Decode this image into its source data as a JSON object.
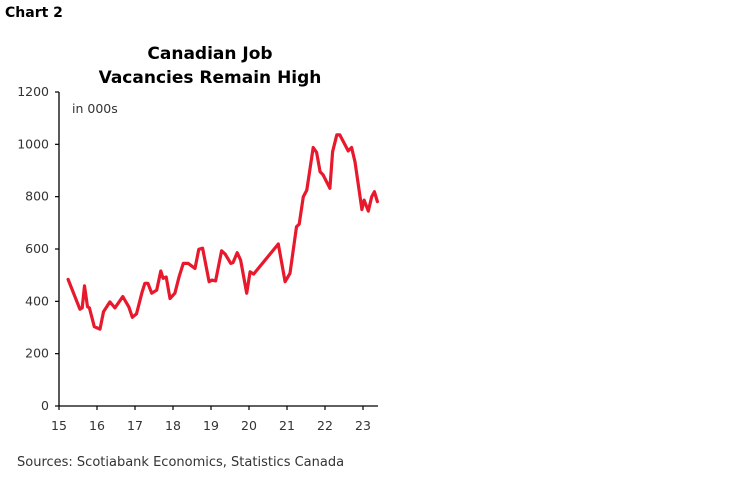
{
  "chart_label": "Chart 2",
  "chart_data": {
    "type": "line",
    "title": "Canadian Job Vacancies Remain High",
    "title_lines": [
      "Canadian Job",
      "Vacancies Remain High"
    ],
    "unit_label": "in 000s",
    "xlabel": "",
    "ylabel": "",
    "ylim": [
      0,
      1200
    ],
    "xlim": [
      15,
      23.4
    ],
    "yticks": [
      0,
      200,
      400,
      600,
      800,
      1000,
      1200
    ],
    "xticks": [
      "15",
      "16",
      "17",
      "18",
      "19",
      "20",
      "21",
      "22",
      "23"
    ],
    "grid": false,
    "legend": "none",
    "color": "#e8192c",
    "series": [
      {
        "x": [
          15.24,
          15.55,
          15.61,
          15.67,
          15.75,
          15.8,
          15.93,
          16.08,
          16.17,
          16.34,
          16.47,
          16.68,
          16.84,
          16.93,
          17.04,
          17.19,
          17.26,
          17.34,
          17.44,
          17.57,
          17.68,
          17.74,
          17.82,
          17.92,
          18.05,
          18.16,
          18.27,
          18.4,
          18.58,
          18.68,
          18.78,
          18.95,
          19.02,
          19.12,
          19.28,
          19.37,
          19.52,
          19.58,
          19.69,
          19.78,
          19.94,
          20.03,
          20.12,
          20.77,
          20.95,
          21.08,
          21.25,
          21.32,
          21.43,
          21.52,
          21.69,
          21.78,
          21.87,
          21.95,
          22.13,
          22.2,
          22.31,
          22.39,
          22.61,
          22.7,
          22.79,
          22.97,
          23.03,
          23.14,
          23.23,
          23.3,
          23.38
        ],
        "y": [
          484,
          370,
          375,
          459,
          379,
          375,
          303,
          294,
          360,
          398,
          375,
          418,
          378,
          339,
          352,
          437,
          469,
          469,
          431,
          443,
          516,
          488,
          493,
          411,
          431,
          494,
          545,
          545,
          526,
          599,
          603,
          475,
          481,
          478,
          593,
          581,
          545,
          548,
          586,
          558,
          431,
          513,
          504,
          619,
          475,
          507,
          685,
          695,
          800,
          825,
          988,
          969,
          895,
          883,
          832,
          972,
          1036,
          1036,
          975,
          988,
          933,
          751,
          787,
          745,
          800,
          819,
          781
        ]
      }
    ]
  },
  "source": "Sources: Scotiabank Economics, Statistics Canada"
}
